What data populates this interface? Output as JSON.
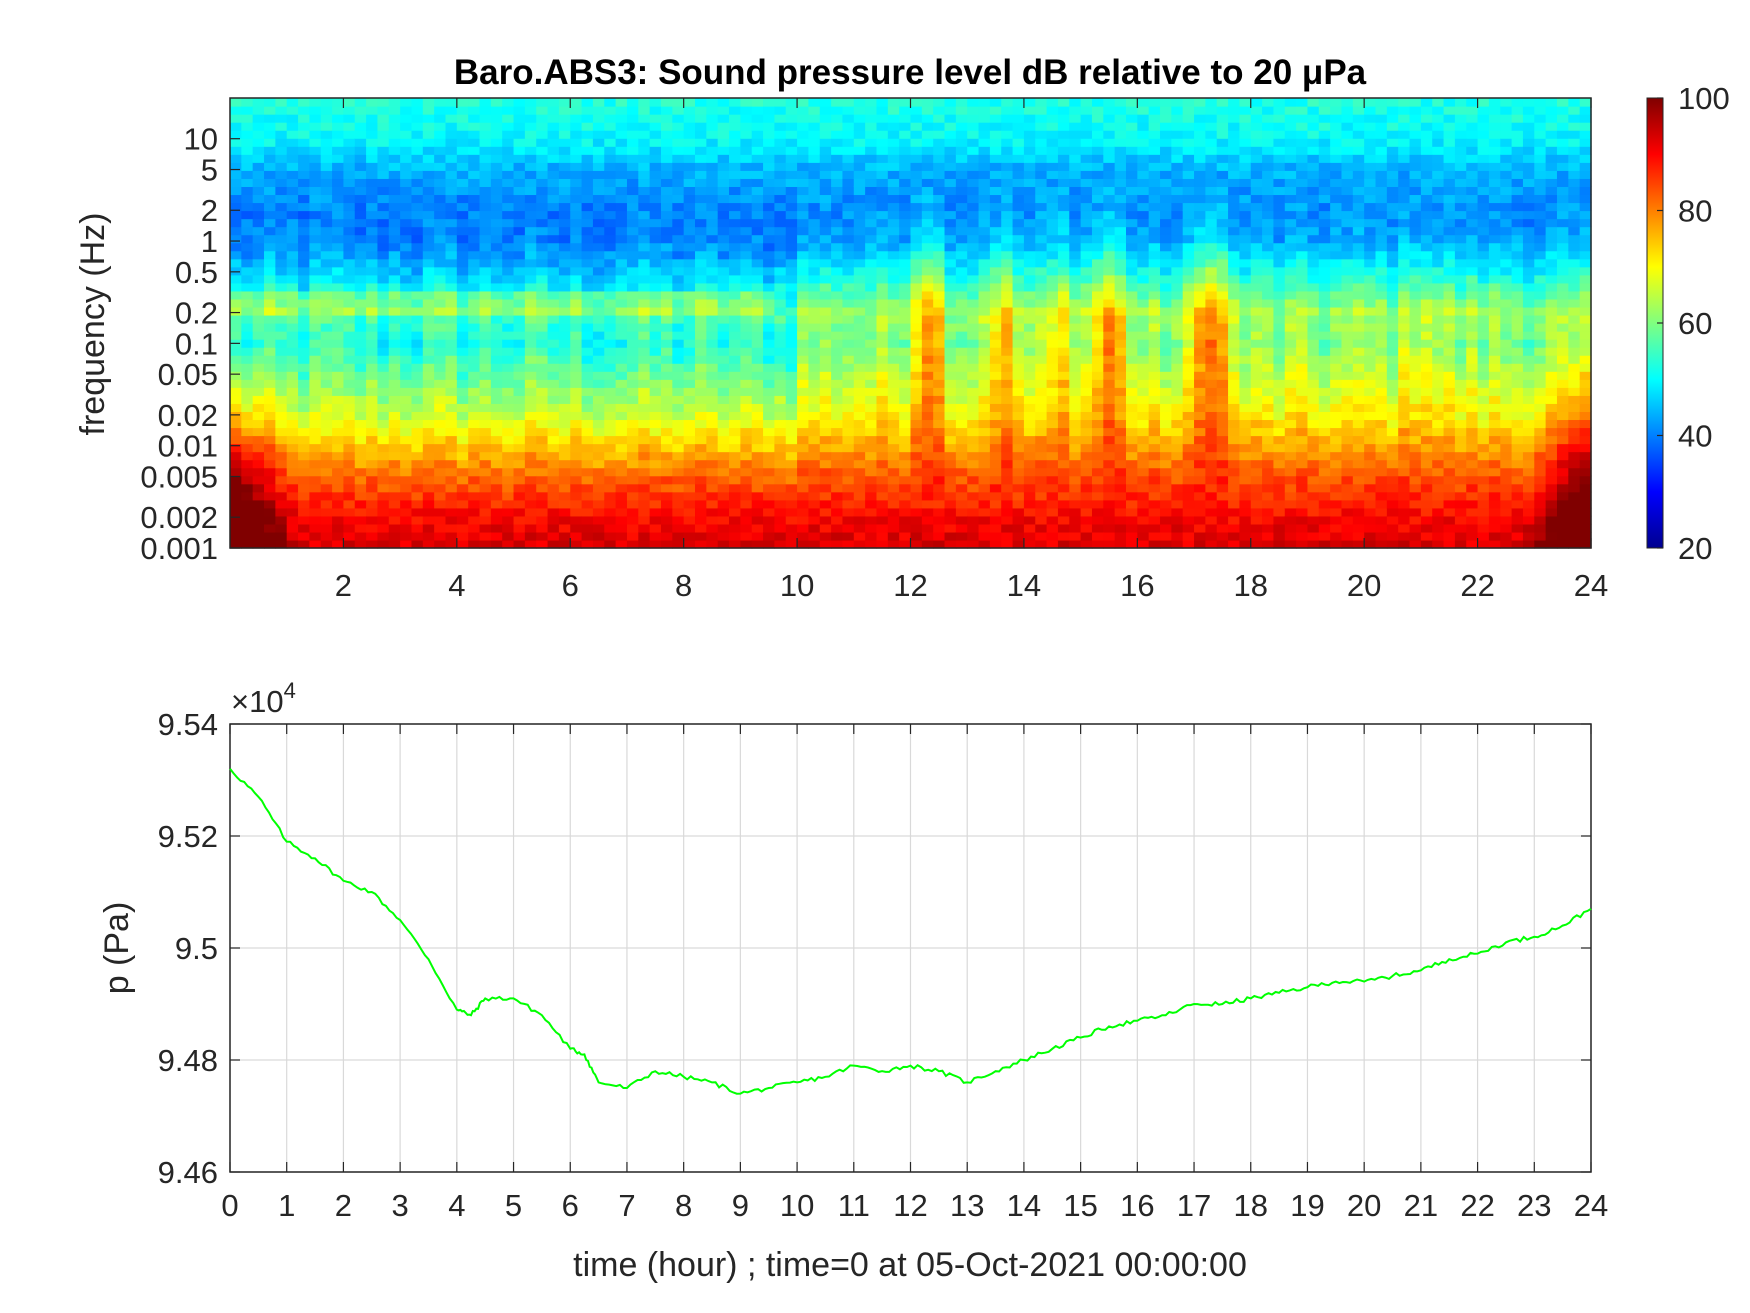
{
  "chart_data": [
    {
      "type": "heatmap",
      "title": "Baro.ABS3: Sound pressure level dB relative to 20 μPa",
      "ylabel": "frequency (Hz)",
      "xlabel": "",
      "x_ticks": [
        "2",
        "4",
        "6",
        "8",
        "10",
        "12",
        "14",
        "16",
        "18",
        "20",
        "22",
        "24"
      ],
      "y_ticks": [
        "0.001",
        "0.002",
        "0.005",
        "0.01",
        "0.02",
        "0.05",
        "0.1",
        "0.2",
        "0.5",
        "1",
        "2",
        "5",
        "10"
      ],
      "y_scale": "log",
      "xlim": [
        0,
        24
      ],
      "ylim": [
        0.001,
        25
      ],
      "colorbar": {
        "ticks": [
          "20",
          "40",
          "60",
          "80",
          "100"
        ],
        "range": [
          20,
          100
        ],
        "colormap": "jet"
      },
      "level_profile_by_frequency": [
        {
          "f": 0.001,
          "db": 93
        },
        {
          "f": 0.002,
          "db": 90
        },
        {
          "f": 0.005,
          "db": 82
        },
        {
          "f": 0.01,
          "db": 74
        },
        {
          "f": 0.02,
          "db": 66
        },
        {
          "f": 0.05,
          "db": 58
        },
        {
          "f": 0.1,
          "db": 52
        },
        {
          "f": 0.2,
          "db": 56
        },
        {
          "f": 0.5,
          "db": 46
        },
        {
          "f": 1,
          "db": 40
        },
        {
          "f": 2,
          "db": 40
        },
        {
          "f": 5,
          "db": 44
        },
        {
          "f": 10,
          "db": 50
        }
      ],
      "activity_windows_hours": [
        {
          "t": 12.3,
          "db_boost": 22
        },
        {
          "t": 13.6,
          "db_boost": 14
        },
        {
          "t": 14.7,
          "db_boost": 10
        },
        {
          "t": 15.5,
          "db_boost": 20
        },
        {
          "t": 17.3,
          "db_boost": 26
        },
        {
          "t": 21.0,
          "db_boost": 8
        }
      ]
    },
    {
      "type": "line",
      "title": "",
      "xlabel": "time (hour) ; time=0 at 05-Oct-2021 00:00:00",
      "ylabel": "p (Pa)",
      "exponent_label": "×10",
      "exponent_power": "4",
      "xlim": [
        0,
        24
      ],
      "ylim": [
        9.46,
        9.54
      ],
      "x_ticks": [
        "0",
        "1",
        "2",
        "3",
        "4",
        "5",
        "6",
        "7",
        "8",
        "9",
        "10",
        "11",
        "12",
        "13",
        "14",
        "15",
        "16",
        "17",
        "18",
        "19",
        "20",
        "21",
        "22",
        "23",
        "24"
      ],
      "y_ticks": [
        "9.46",
        "9.48",
        "9.5",
        "9.52",
        "9.54"
      ],
      "grid": true,
      "series": [
        {
          "color": "#00ff00",
          "x": [
            0,
            0.5,
            1,
            1.5,
            2,
            2.5,
            3,
            3.5,
            4,
            4.25,
            4.5,
            5,
            5.5,
            6,
            6.25,
            6.5,
            7,
            7.5,
            8,
            8.5,
            9,
            9.5,
            10,
            10.5,
            11,
            11.5,
            12,
            12.5,
            13,
            13.5,
            14,
            14.5,
            15,
            15.5,
            16,
            16.5,
            17,
            17.5,
            18,
            18.5,
            19,
            19.5,
            20,
            20.5,
            21,
            21.5,
            22,
            22.5,
            23,
            23.5,
            24
          ],
          "y": [
            9.532,
            9.527,
            9.519,
            9.516,
            9.512,
            9.51,
            9.505,
            9.498,
            9.489,
            9.488,
            9.491,
            9.491,
            9.488,
            9.482,
            9.481,
            9.476,
            9.475,
            9.478,
            9.477,
            9.476,
            9.474,
            9.475,
            9.476,
            9.477,
            9.479,
            9.478,
            9.479,
            9.478,
            9.476,
            9.478,
            9.48,
            9.482,
            9.484,
            9.486,
            9.487,
            9.488,
            9.49,
            9.49,
            9.491,
            9.492,
            9.493,
            9.494,
            9.494,
            9.495,
            9.496,
            9.498,
            9.499,
            9.501,
            9.502,
            9.504,
            9.507
          ]
        }
      ]
    }
  ],
  "colors": {
    "axis": "#262626",
    "grid": "#d9d9d9",
    "line": "#00ff00"
  }
}
